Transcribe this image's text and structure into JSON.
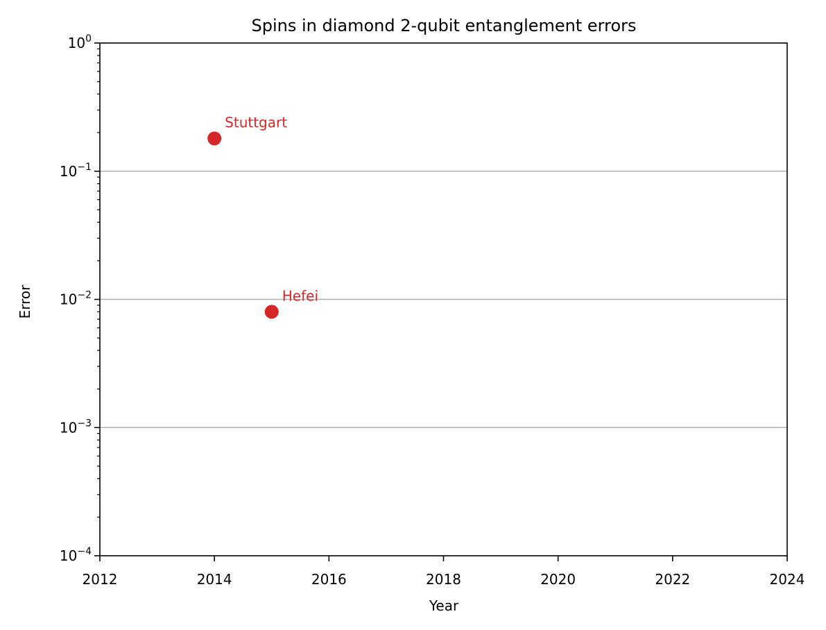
{
  "chart_data": {
    "type": "scatter",
    "title": "Spins in diamond 2-qubit entanglement errors",
    "xlabel": "Year",
    "ylabel": "Error",
    "xlim": [
      2012,
      2024
    ],
    "ylim": [
      0.0001,
      1
    ],
    "yscale": "log",
    "grid": "horizontal major lines at 10^-1, 10^-2, 10^-3",
    "x_ticks": [
      "2012",
      "2014",
      "2016",
      "2018",
      "2020",
      "2022",
      "2024"
    ],
    "y_ticks": [
      {
        "base": "10",
        "exp": "0",
        "value": 1
      },
      {
        "base": "10",
        "exp": "−1",
        "value": 0.1
      },
      {
        "base": "10",
        "exp": "−2",
        "value": 0.01
      },
      {
        "base": "10",
        "exp": "−3",
        "value": 0.001
      },
      {
        "base": "10",
        "exp": "−4",
        "value": 0.0001
      }
    ],
    "points": [
      {
        "label": "Stuttgart",
        "x": 2014.0,
        "y": 0.18
      },
      {
        "label": "Hefei",
        "x": 2015.0,
        "y": 0.008
      }
    ],
    "colors": {
      "marker": "#d62728",
      "grid": "#b0b0b0",
      "axes": "#000000"
    }
  }
}
